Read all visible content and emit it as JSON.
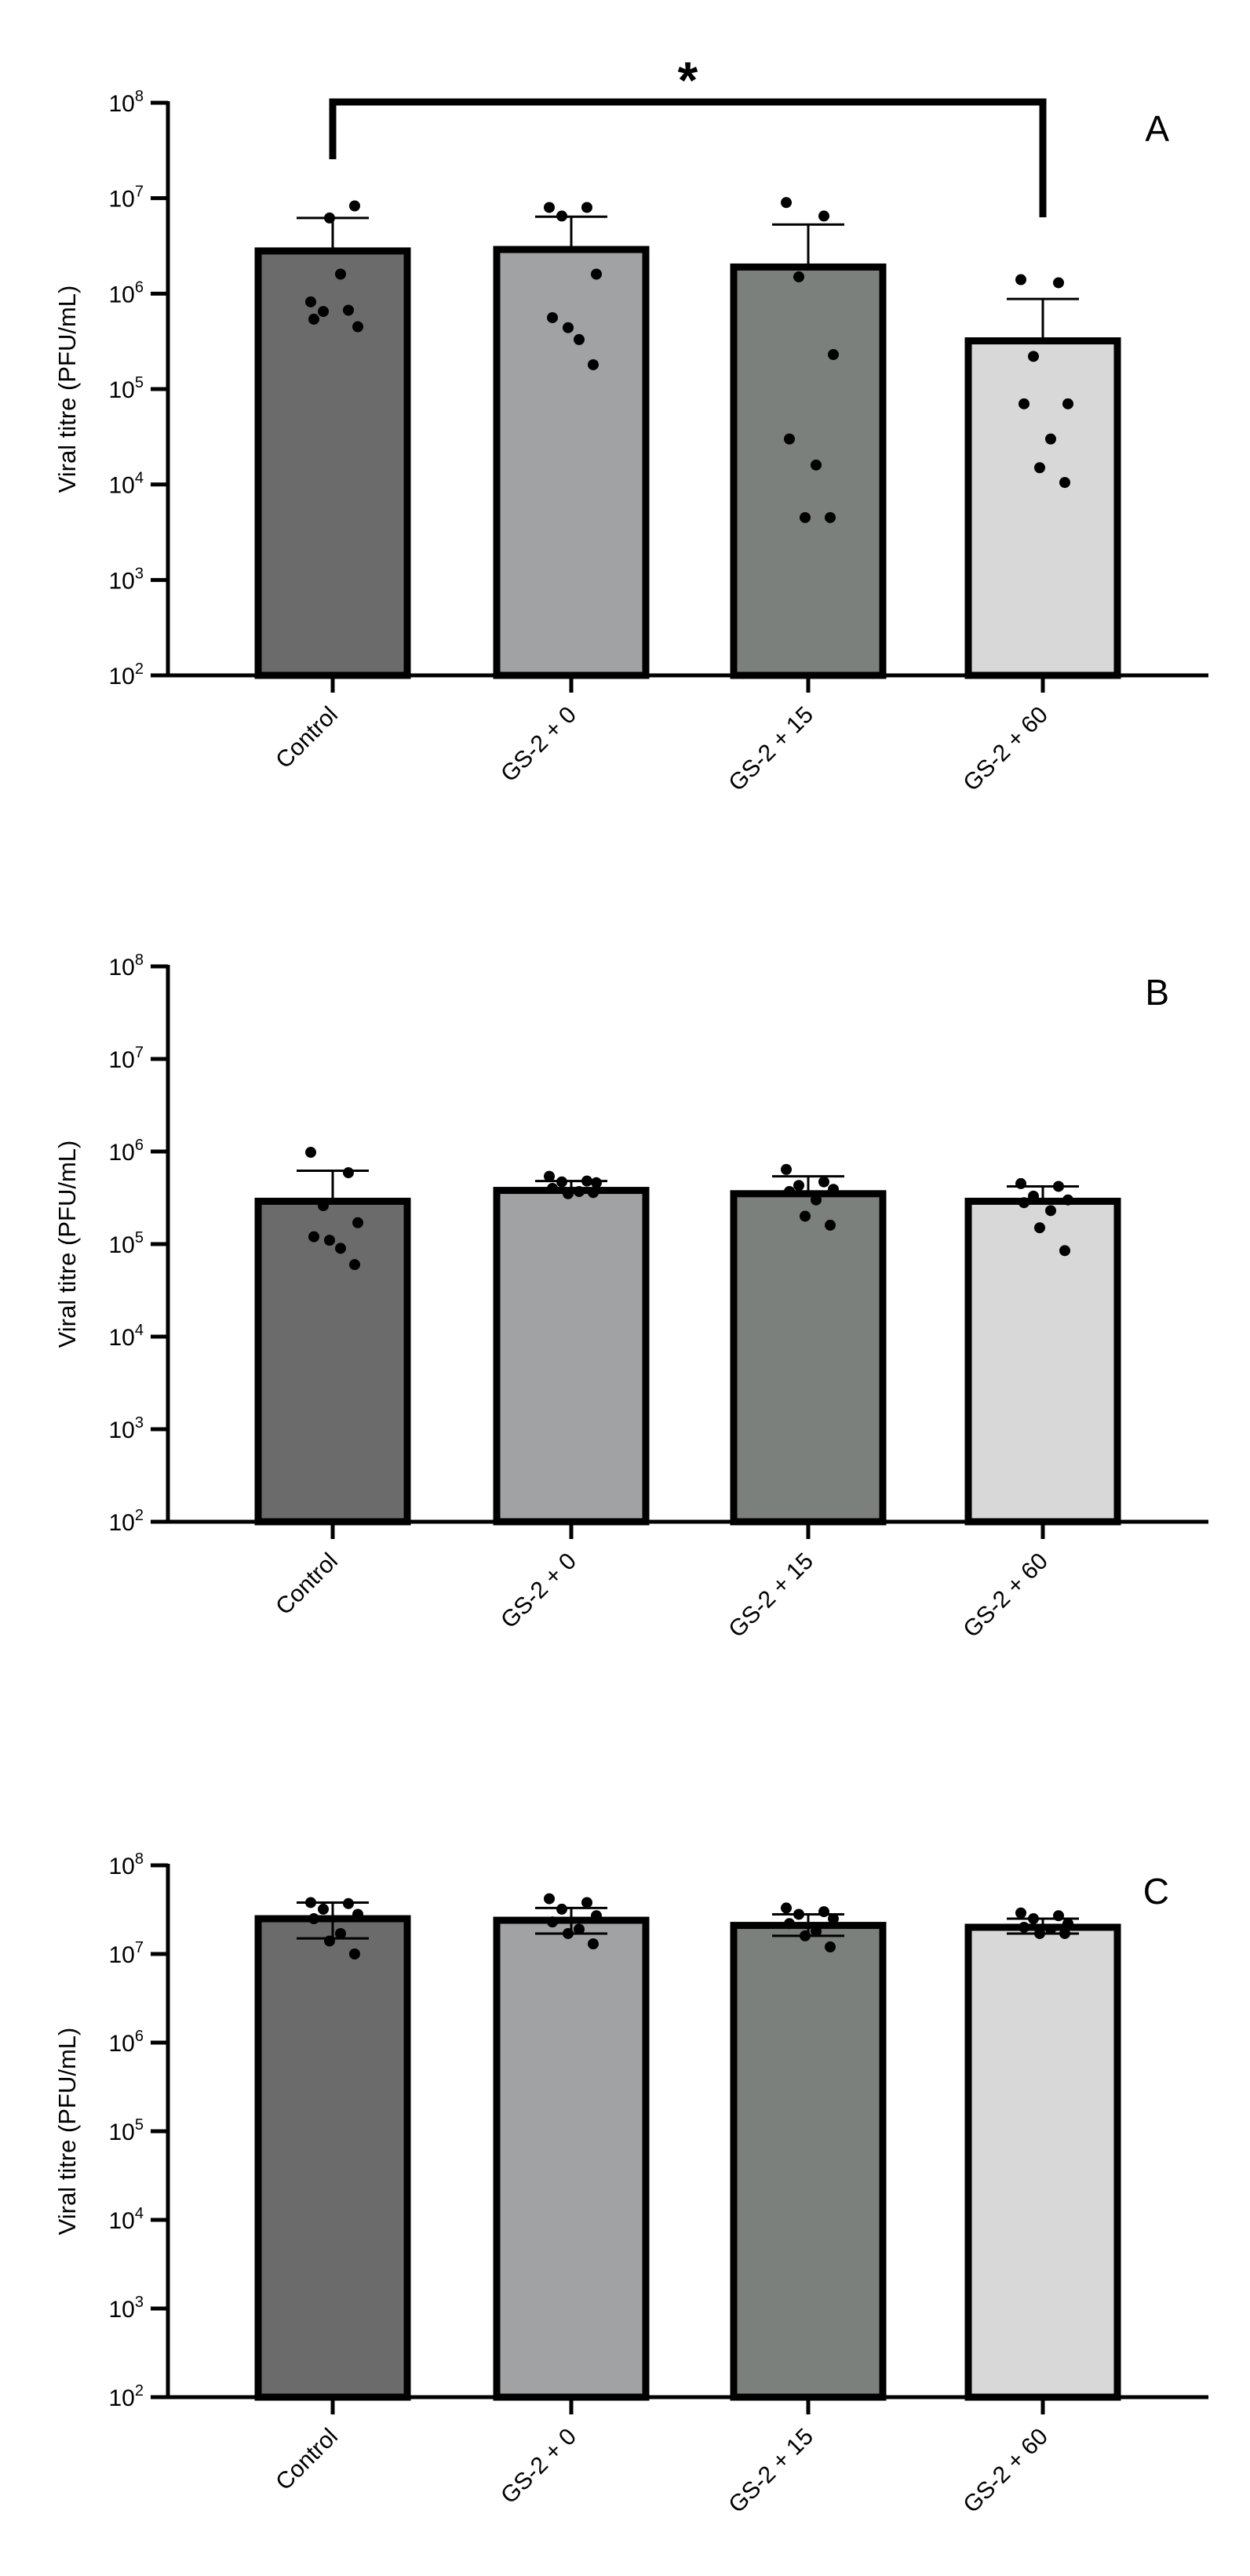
{
  "chart_data": [
    {
      "type": "bar",
      "panel_label": "A",
      "ylabel": "Viral titre (PFU/mL)",
      "yscale": "log",
      "ylim": [
        100,
        100000000
      ],
      "yticks": [
        100,
        1000,
        10000,
        100000,
        1000000,
        10000000,
        100000000
      ],
      "ytick_labels": [
        {
          "base": "10",
          "exp": "2"
        },
        {
          "base": "10",
          "exp": "3"
        },
        {
          "base": "10",
          "exp": "4"
        },
        {
          "base": "10",
          "exp": "5"
        },
        {
          "base": "10",
          "exp": "6"
        },
        {
          "base": "10",
          "exp": "7"
        },
        {
          "base": "10",
          "exp": "8"
        }
      ],
      "categories": [
        "Control",
        "GS-2 + 0",
        "GS-2 + 15",
        "GS-2 + 60"
      ],
      "values": [
        2800000,
        2900000,
        1900000,
        320000
      ],
      "error_upper": [
        6200000,
        6400000,
        5300000,
        880000
      ],
      "points": [
        [
          820000,
          670000,
          650000,
          450000,
          540000,
          1600000,
          6200000,
          8300000
        ],
        [
          8000000,
          8000000,
          6500000,
          1600000,
          560000,
          330000,
          440000,
          180000
        ],
        [
          9000000,
          6500000,
          1500000,
          230000,
          30000,
          16000,
          4500,
          4500
        ],
        [
          1400000,
          1300000,
          220000,
          70000,
          70000,
          30000,
          15000,
          10500
        ]
      ],
      "significance": {
        "label": "*",
        "from": 0,
        "to": 3
      },
      "grid": false
    },
    {
      "type": "bar",
      "panel_label": "B",
      "ylabel": "Viral titre (PFU/mL)",
      "yscale": "log",
      "ylim": [
        100,
        100000000
      ],
      "yticks": [
        100,
        1000,
        10000,
        100000,
        1000000,
        10000000,
        100000000
      ],
      "ytick_labels": [
        {
          "base": "10",
          "exp": "2"
        },
        {
          "base": "10",
          "exp": "3"
        },
        {
          "base": "10",
          "exp": "4"
        },
        {
          "base": "10",
          "exp": "5"
        },
        {
          "base": "10",
          "exp": "6"
        },
        {
          "base": "10",
          "exp": "7"
        },
        {
          "base": "10",
          "exp": "8"
        }
      ],
      "categories": [
        "Control",
        "GS-2 + 0",
        "GS-2 + 15",
        "GS-2 + 60"
      ],
      "values": [
        290000,
        380000,
        350000,
        290000
      ],
      "error_upper": [
        620000,
        480000,
        540000,
        420000
      ],
      "points": [
        [
          980000,
          590000,
          260000,
          170000,
          120000,
          90000,
          110000,
          60000
        ],
        [
          540000,
          480000,
          470000,
          460000,
          400000,
          370000,
          350000,
          360000
        ],
        [
          640000,
          470000,
          430000,
          390000,
          370000,
          300000,
          200000,
          160000
        ],
        [
          450000,
          420000,
          330000,
          300000,
          280000,
          230000,
          150000,
          85000
        ]
      ],
      "grid": false
    },
    {
      "type": "bar",
      "panel_label": "C",
      "ylabel": "Viral titre (PFU/mL)",
      "yscale": "log",
      "ylim": [
        100,
        100000000
      ],
      "yticks": [
        100,
        1000,
        10000,
        100000,
        1000000,
        10000000,
        100000000
      ],
      "ytick_labels": [
        {
          "base": "10",
          "exp": "2"
        },
        {
          "base": "10",
          "exp": "3"
        },
        {
          "base": "10",
          "exp": "4"
        },
        {
          "base": "10",
          "exp": "5"
        },
        {
          "base": "10",
          "exp": "6"
        },
        {
          "base": "10",
          "exp": "7"
        },
        {
          "base": "10",
          "exp": "8"
        }
      ],
      "categories": [
        "Control",
        "GS-2 + 0",
        "GS-2 + 15",
        "GS-2 + 60"
      ],
      "values": [
        25000000,
        24000000,
        21000000,
        20000000
      ],
      "error_upper": [
        38000000,
        33000000,
        28000000,
        25000000
      ],
      "error_lower": [
        15000000,
        17000000,
        16000000,
        17000000
      ],
      "points": [
        [
          38000000,
          37000000,
          32000000,
          28000000,
          25000000,
          17000000,
          14000000,
          10000000
        ],
        [
          42000000,
          38000000,
          32000000,
          27000000,
          23000000,
          19000000,
          17000000,
          13000000
        ],
        [
          33000000,
          30000000,
          28000000,
          25000000,
          22000000,
          18000000,
          16000000,
          12000000
        ],
        [
          29000000,
          27000000,
          25000000,
          22000000,
          20000000,
          19000000,
          17000000,
          17000000
        ]
      ],
      "grid": false
    }
  ],
  "colors": {
    "bars": [
      "#6b6b6b",
      "#a0a2a4",
      "#7c807c",
      "#d8d8d8"
    ],
    "axis": "#000000"
  }
}
